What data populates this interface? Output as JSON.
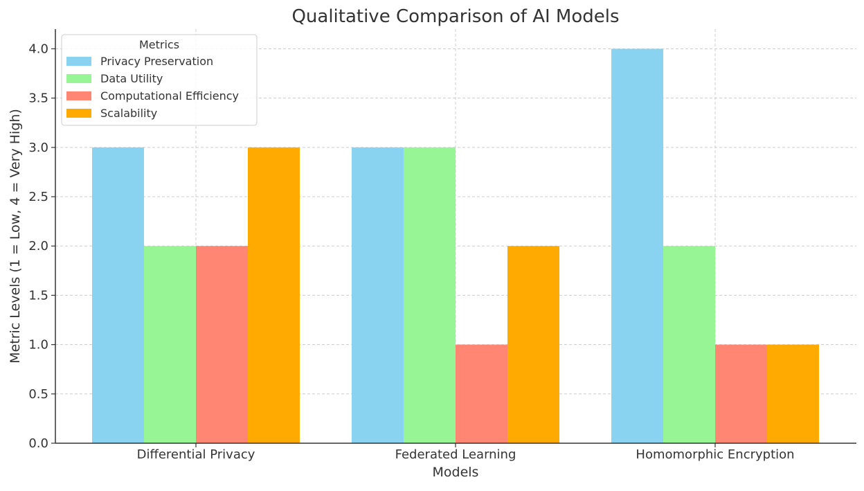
{
  "chart_data": {
    "type": "bar",
    "title": "Qualitative Comparison of AI Models",
    "xlabel": "Models",
    "ylabel": "Metric Levels (1 = Low, 4 = Very High)",
    "categories": [
      "Differential Privacy",
      "Federated Learning",
      "Homomorphic Encryption"
    ],
    "ylim": [
      0,
      4.2
    ],
    "yticks": [
      0.0,
      0.5,
      1.0,
      1.5,
      2.0,
      2.5,
      3.0,
      3.5,
      4.0
    ],
    "ytick_labels": [
      "0.0",
      "0.5",
      "1.0",
      "1.5",
      "2.0",
      "2.5",
      "3.0",
      "3.5",
      "4.0"
    ],
    "grid": true,
    "legend": {
      "title": "Metrics",
      "position": "top-left"
    },
    "series": [
      {
        "name": "Privacy Preservation",
        "color": "#89d3f1",
        "values": [
          3,
          3,
          4
        ]
      },
      {
        "name": "Data Utility",
        "color": "#98f596",
        "values": [
          2,
          3,
          2
        ]
      },
      {
        "name": "Computational Efficiency",
        "color": "#ff8672",
        "values": [
          2,
          1,
          1
        ]
      },
      {
        "name": "Scalability",
        "color": "#ffaa00",
        "values": [
          3,
          2,
          1
        ]
      }
    ]
  }
}
